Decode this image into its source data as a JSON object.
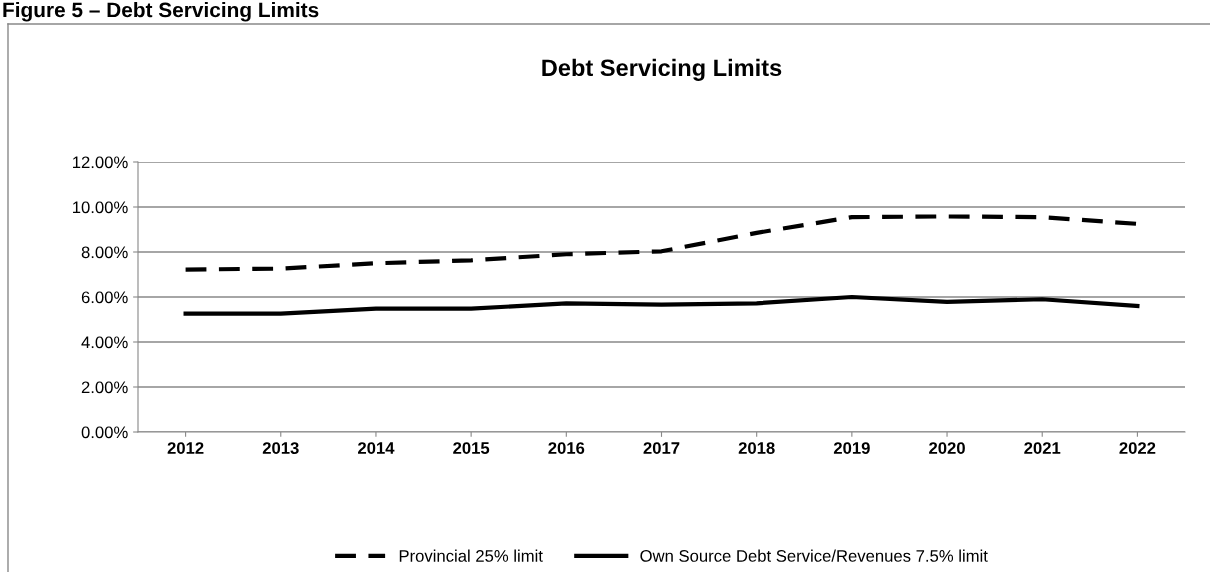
{
  "chart_data": {
    "type": "line",
    "title": "Debt Servicing Limits",
    "annotations": [
      "Figure 5 – Debt Servicing Limits"
    ],
    "categories": [
      "2012",
      "2013",
      "2014",
      "2015",
      "2016",
      "2017",
      "2018",
      "2019",
      "2020",
      "2021",
      "2022"
    ],
    "series": [
      {
        "name": "Provincial 25% limit",
        "color": "#000000",
        "line_style": "dashed",
        "values": [
          7.22,
          7.26,
          7.5,
          7.63,
          7.9,
          8.03,
          8.85,
          9.55,
          9.58,
          9.55,
          9.25
        ]
      },
      {
        "name": "Own Source Debt Service/Revenues 7.5% limit",
        "color": "#000000",
        "line_style": "solid",
        "values": [
          5.26,
          5.26,
          5.48,
          5.48,
          5.72,
          5.66,
          5.72,
          6.0,
          5.78,
          5.9,
          5.6
        ]
      }
    ],
    "ylim": [
      0,
      12
    ],
    "yticks": [
      {
        "value": 0,
        "label": "0.00%"
      },
      {
        "value": 2,
        "label": "2.00%"
      },
      {
        "value": 4,
        "label": "4.00%"
      },
      {
        "value": 6,
        "label": "6.00%"
      },
      {
        "value": 8,
        "label": "8.00%"
      },
      {
        "value": 10,
        "label": "10.00%"
      },
      {
        "value": 12,
        "label": "12.00%"
      }
    ],
    "grid": "y",
    "legend": "bottom",
    "marker": "none"
  }
}
